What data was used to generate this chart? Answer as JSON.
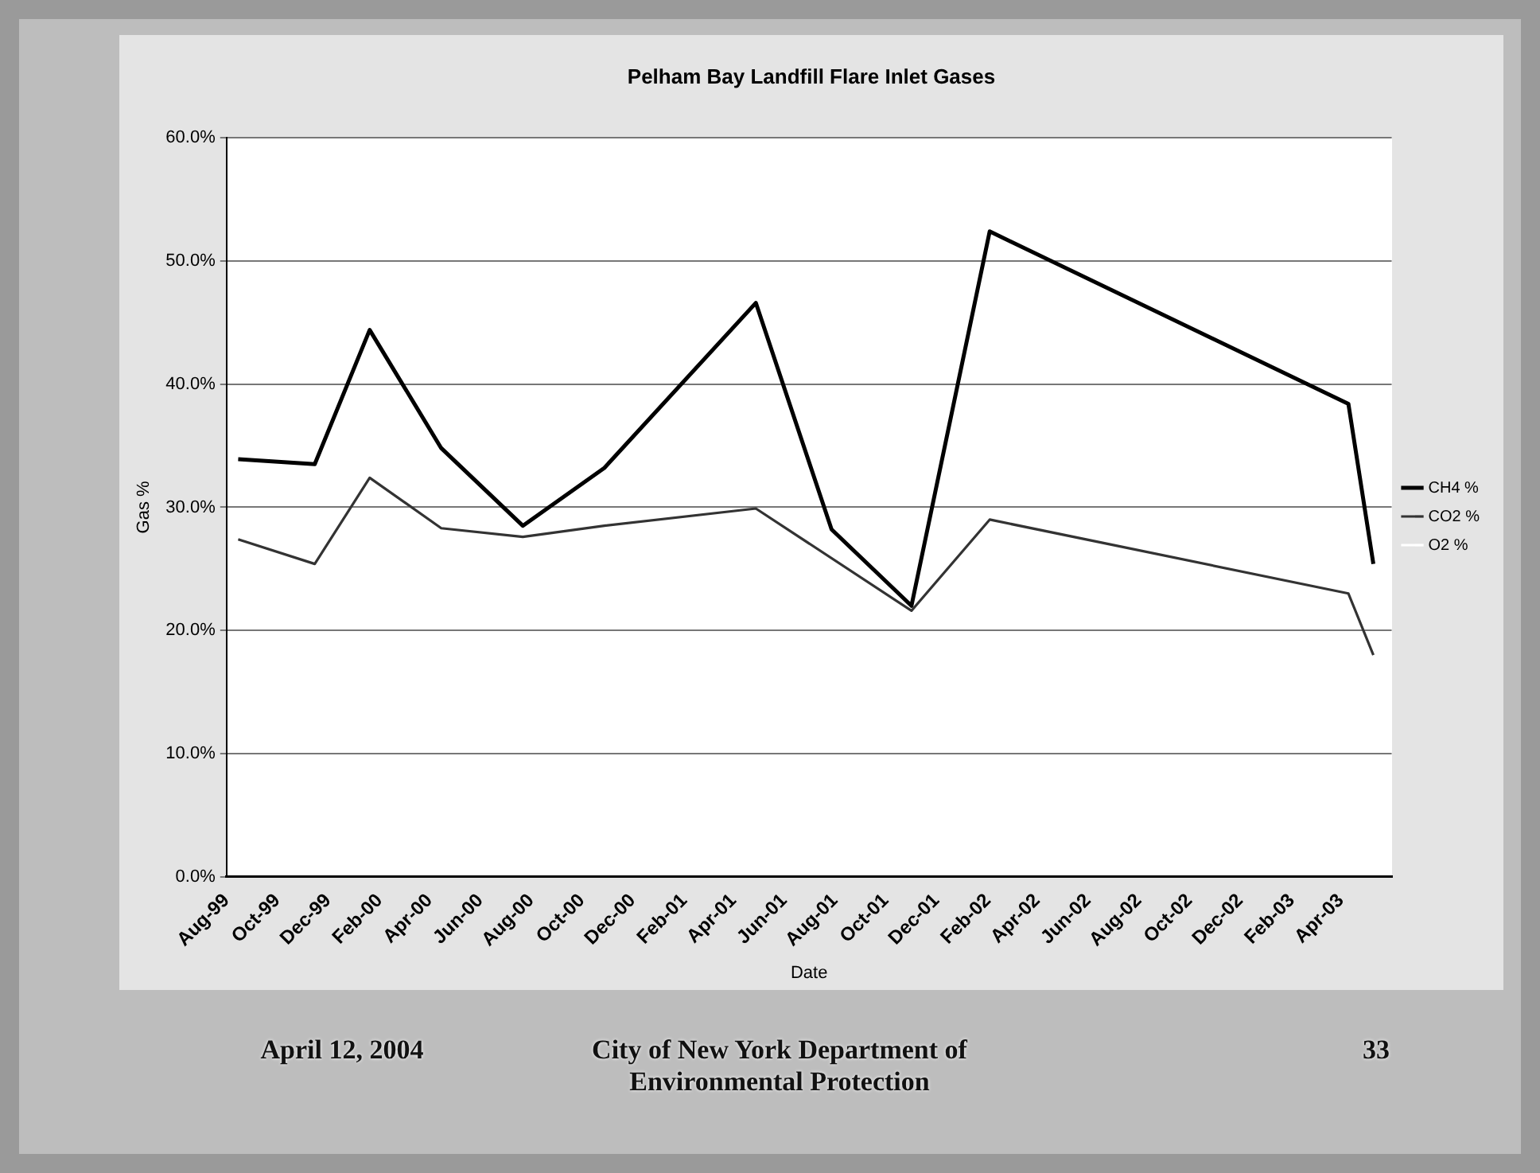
{
  "chart_data": {
    "type": "line",
    "title": "Pelham Bay Landfill Flare Inlet Gases",
    "xlabel": "Date",
    "ylabel": "Gas %",
    "x": [
      "1999-08-15",
      "1999-11-15",
      "2000-01-20",
      "2000-04-15",
      "2000-07-22",
      "2000-10-28",
      "2001-04-28",
      "2001-07-28",
      "2001-11-01",
      "2002-02-03",
      "2003-04-10",
      "2003-05-10"
    ],
    "series": [
      {
        "name": "CH4 %",
        "color": "#000000",
        "values": [
          33.9,
          33.5,
          44.4,
          34.8,
          28.5,
          33.2,
          46.6,
          28.2,
          22.0,
          52.4,
          38.4,
          25.4
        ]
      },
      {
        "name": "CO2 %",
        "color": "#333333",
        "values": [
          27.4,
          25.4,
          32.4,
          28.3,
          27.6,
          28.5,
          29.9,
          null,
          21.6,
          29.0,
          23.0,
          18.0
        ]
      },
      {
        "name": "O2 %",
        "color": "#ffffff",
        "values": [
          null,
          null,
          null,
          null,
          null,
          null,
          null,
          null,
          null,
          null,
          null,
          null
        ]
      }
    ],
    "xlim": [
      "1999-08-01",
      "2003-06-01"
    ],
    "xticks": [
      {
        "value": "1999-08-01",
        "label": "Aug-99"
      },
      {
        "value": "1999-10-01",
        "label": "Oct-99"
      },
      {
        "value": "1999-12-01",
        "label": "Dec-99"
      },
      {
        "value": "2000-02-01",
        "label": "Feb-00"
      },
      {
        "value": "2000-04-01",
        "label": "Apr-00"
      },
      {
        "value": "2000-06-01",
        "label": "Jun-00"
      },
      {
        "value": "2000-08-01",
        "label": "Aug-00"
      },
      {
        "value": "2000-10-01",
        "label": "Oct-00"
      },
      {
        "value": "2000-12-01",
        "label": "Dec-00"
      },
      {
        "value": "2001-02-01",
        "label": "Feb-01"
      },
      {
        "value": "2001-04-01",
        "label": "Apr-01"
      },
      {
        "value": "2001-06-01",
        "label": "Jun-01"
      },
      {
        "value": "2001-08-01",
        "label": "Aug-01"
      },
      {
        "value": "2001-10-01",
        "label": "Oct-01"
      },
      {
        "value": "2001-12-01",
        "label": "Dec-01"
      },
      {
        "value": "2002-02-01",
        "label": "Feb-02"
      },
      {
        "value": "2002-04-01",
        "label": "Apr-02"
      },
      {
        "value": "2002-06-01",
        "label": "Jun-02"
      },
      {
        "value": "2002-08-01",
        "label": "Aug-02"
      },
      {
        "value": "2002-10-01",
        "label": "Oct-02"
      },
      {
        "value": "2002-12-01",
        "label": "Dec-02"
      },
      {
        "value": "2003-02-01",
        "label": "Feb-03"
      },
      {
        "value": "2003-04-01",
        "label": "Apr-03"
      }
    ],
    "ylim": [
      0,
      60
    ],
    "yticks": [
      {
        "value": 0,
        "label": "0.0%"
      },
      {
        "value": 10,
        "label": "10.0%"
      },
      {
        "value": 20,
        "label": "20.0%"
      },
      {
        "value": 30,
        "label": "30.0%"
      },
      {
        "value": 40,
        "label": "40.0%"
      },
      {
        "value": 50,
        "label": "50.0%"
      },
      {
        "value": 60,
        "label": "60.0%"
      }
    ],
    "grid": "y",
    "legend": "right",
    "marker": "none",
    "line_style": "solid",
    "annotations": [
      "April 12, 2004",
      "City of New York Department of Environmental Protection",
      "33"
    ]
  }
}
